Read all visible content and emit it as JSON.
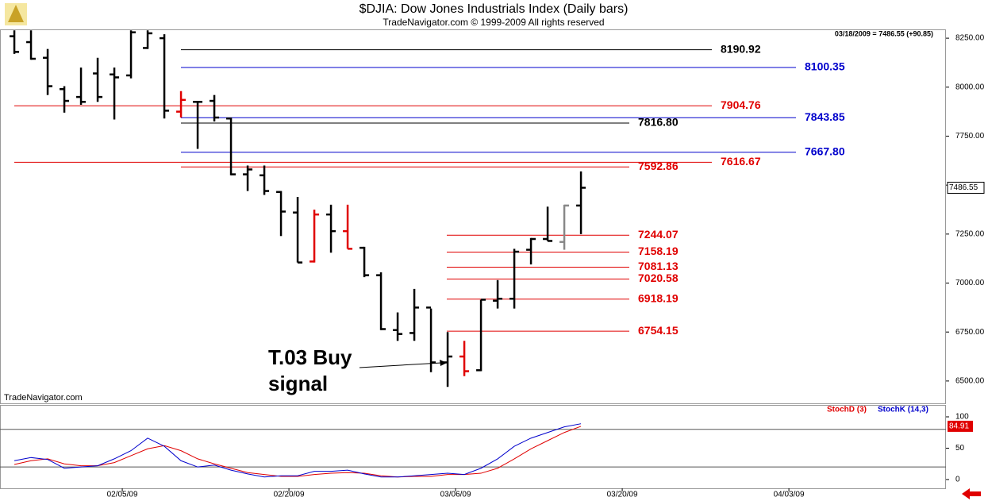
{
  "chart_data": [
    {
      "type": "ohlc",
      "title": "$DJIA:  Dow Jones Industrials Index  (Daily bars)",
      "subtitle": "TradeNavigator.com © 1999-2009 All rights reserved",
      "quote": "03/18/2009 = 7486.55 (+90.85)",
      "watermark": "TradeNavigator.com",
      "annotation": [
        "T.03 Buy",
        "signal"
      ],
      "open": [
        8260,
        8230,
        8150,
        7990,
        7950,
        8070,
        8065,
        8060,
        8200,
        8250,
        7875,
        7925,
        7930,
        7840,
        7555,
        7550,
        7465,
        7360,
        7110,
        7350,
        7265,
        7180,
        7040,
        6760,
        6745,
        6875,
        6595,
        6625,
        6555,
        6910,
        6920,
        7170,
        7225,
        7210,
        7395.7
      ],
      "high": [
        8290,
        8290,
        8195,
        8005,
        8100,
        8150,
        8100,
        8290,
        8290,
        8270,
        7980,
        7930,
        7960,
        7845,
        7600,
        7600,
        7470,
        7440,
        7375,
        7400,
        7400,
        7185,
        7055,
        6850,
        6970,
        6870,
        6750,
        6705,
        6915,
        7015,
        7175,
        7230,
        7390,
        7400,
        7570
      ],
      "low": [
        8170,
        8140,
        7960,
        7870,
        7910,
        7925,
        7835,
        8045,
        8195,
        7840,
        7845,
        7685,
        7825,
        7550,
        7470,
        7450,
        7240,
        7105,
        7105,
        7155,
        7175,
        7030,
        6760,
        6705,
        6705,
        6545,
        6470,
        6525,
        6550,
        6870,
        6870,
        7095,
        7215,
        7170,
        7250
      ],
      "close": [
        8180,
        8145,
        8005,
        7930,
        7925,
        7950,
        8050,
        8280,
        8275,
        7880,
        7935,
        7925,
        7845,
        7555,
        7580,
        7470,
        7365,
        7105,
        7350,
        7265,
        7175,
        7040,
        6765,
        6740,
        6875,
        6595,
        6625,
        6550,
        6915,
        6920,
        7160,
        7225,
        7215,
        7395.7,
        7486.55
      ],
      "colors": [
        "#000",
        "#000",
        "#000",
        "#000",
        "#000",
        "#000",
        "#000",
        "#000",
        "#000",
        "#000",
        "#e00000",
        "#000",
        "#000",
        "#000",
        "#000",
        "#000",
        "#000",
        "#000",
        "#e00000",
        "#000",
        "#e00000",
        "#000",
        "#000",
        "#000",
        "#000",
        "#000",
        "#000",
        "#e00000",
        "#000",
        "#000",
        "#000",
        "#000",
        "#000",
        "#888",
        "#000"
      ],
      "xlim": [
        -0.86,
        55.9
      ],
      "xticks": [
        {
          "value": 6,
          "label": "02/05/09"
        },
        {
          "value": 16,
          "label": "02/20/09"
        },
        {
          "value": 26,
          "label": "03/06/09"
        },
        {
          "value": 36,
          "label": "03/20/09"
        },
        {
          "value": 46,
          "label": "04/03/09"
        }
      ],
      "ylim": [
        6386,
        8295
      ],
      "yticks": [
        {
          "value": 6500,
          "label": "6500.00"
        },
        {
          "value": 6750,
          "label": "6750.00"
        },
        {
          "value": 7000,
          "label": "7000.00"
        },
        {
          "value": 7250,
          "label": "7250.00"
        },
        {
          "value": 7500,
          "label": "7500.00"
        },
        {
          "value": 7750,
          "label": "7750.00"
        },
        {
          "value": 8000,
          "label": "8000.00"
        },
        {
          "value": 8250,
          "label": "8250.00"
        }
      ],
      "levels": [
        {
          "value": 8190.92,
          "color": "#000000"
        },
        {
          "value": 8100.35,
          "color": "#0000cc"
        },
        {
          "value": 7904.76,
          "color": "#e00000"
        },
        {
          "value": 7843.85,
          "color": "#0000cc"
        },
        {
          "value": 7816.8,
          "label": "7816.80",
          "color": "#000000"
        },
        {
          "value": 7667.8,
          "label": "7667.80",
          "color": "#0000cc"
        },
        {
          "value": 7616.67,
          "color": "#e00000"
        },
        {
          "value": 7592.86,
          "color": "#e00000"
        },
        {
          "value": 7244.07,
          "color": "#e00000"
        },
        {
          "value": 7158.19,
          "color": "#e00000"
        },
        {
          "value": 7081.13,
          "color": "#e00000"
        },
        {
          "value": 7020.58,
          "color": "#e00000"
        },
        {
          "value": 6918.19,
          "color": "#e00000"
        },
        {
          "value": 6754.15,
          "color": "#e00000"
        }
      ]
    },
    {
      "type": "line",
      "series": [
        {
          "name": "StochD (3)",
          "color": "#e00000",
          "values": [
            24,
            30,
            33,
            25,
            22,
            22,
            27,
            38,
            49,
            54,
            46,
            33,
            25,
            18,
            11,
            8,
            5,
            5,
            8,
            10,
            11,
            10,
            6,
            4,
            5,
            5,
            8,
            8,
            10,
            18,
            33,
            49,
            62,
            75,
            84.91
          ]
        },
        {
          "name": "StochK (14,3)",
          "color": "#0000cc",
          "values": [
            30,
            35,
            32,
            18,
            20,
            22,
            33,
            46,
            66,
            53,
            30,
            20,
            23,
            15,
            9,
            4,
            6,
            6,
            13,
            13,
            15,
            9,
            4,
            4,
            6,
            8,
            10,
            8,
            18,
            33,
            53,
            66,
            75,
            84,
            89
          ]
        }
      ],
      "ylim": [
        -14,
        119
      ],
      "yticks": [
        0,
        50,
        100
      ],
      "levels": [
        20,
        80
      ]
    }
  ]
}
